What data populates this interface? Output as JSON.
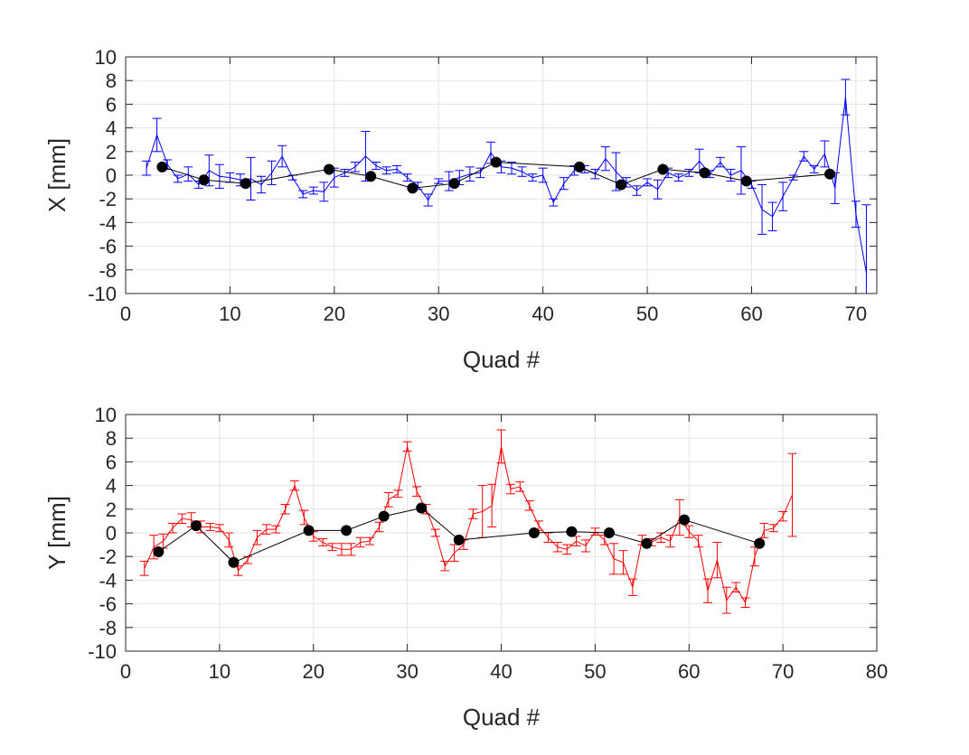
{
  "chart_data": [
    {
      "type": "line",
      "xlabel": "Quad #",
      "ylabel": "X [mm]",
      "xlim": [
        0,
        72
      ],
      "ylim": [
        -10,
        10
      ],
      "xticks": [
        0,
        10,
        20,
        30,
        40,
        50,
        60,
        70
      ],
      "yticks": [
        -10,
        -8,
        -6,
        -4,
        -2,
        0,
        2,
        4,
        6,
        8,
        10
      ],
      "grid": true,
      "series": [
        {
          "style": "errorbar",
          "color": "#0000ff",
          "points": [
            {
              "x": 2,
              "y": 0.6,
              "err": 0.6
            },
            {
              "x": 3,
              "y": 3.4,
              "err": 1.4
            },
            {
              "x": 4,
              "y": 0.9,
              "err": 0.4
            },
            {
              "x": 5,
              "y": -0.3,
              "err": 0.3
            },
            {
              "x": 6,
              "y": 0.1,
              "err": 0.6
            },
            {
              "x": 7,
              "y": -0.8,
              "err": 0.3
            },
            {
              "x": 8,
              "y": 0.4,
              "err": 1.3
            },
            {
              "x": 9,
              "y": -0.1,
              "err": 1.0
            },
            {
              "x": 10,
              "y": -0.2,
              "err": 0.4
            },
            {
              "x": 11,
              "y": -0.4,
              "err": 0.5
            },
            {
              "x": 12,
              "y": -0.3,
              "err": 1.8
            },
            {
              "x": 13,
              "y": -0.8,
              "err": 0.7
            },
            {
              "x": 14,
              "y": 0.2,
              "err": 1.0
            },
            {
              "x": 15,
              "y": 1.6,
              "err": 0.9
            },
            {
              "x": 16,
              "y": -0.2,
              "err": 0.2
            },
            {
              "x": 17,
              "y": -1.6,
              "err": 0.3
            },
            {
              "x": 18,
              "y": -1.3,
              "err": 0.3
            },
            {
              "x": 19,
              "y": -1.4,
              "err": 0.8
            },
            {
              "x": 20,
              "y": -0.2,
              "err": 0.8
            },
            {
              "x": 21,
              "y": 0.2,
              "err": 0.3
            },
            {
              "x": 22,
              "y": 0.7,
              "err": 0.4
            },
            {
              "x": 23,
              "y": 1.6,
              "err": 2.1
            },
            {
              "x": 24,
              "y": 0.8,
              "err": 0.3
            },
            {
              "x": 25,
              "y": 0.4,
              "err": 0.3
            },
            {
              "x": 26,
              "y": 0.5,
              "err": 0.3
            },
            {
              "x": 27,
              "y": -0.2,
              "err": 0.3
            },
            {
              "x": 28,
              "y": -0.9,
              "err": 0.3
            },
            {
              "x": 29,
              "y": -2.1,
              "err": 0.5
            },
            {
              "x": 30,
              "y": -0.5,
              "err": 0.2
            },
            {
              "x": 31,
              "y": -0.5,
              "err": 0.8
            },
            {
              "x": 32,
              "y": -0.2,
              "err": 0.6
            },
            {
              "x": 33,
              "y": 0.1,
              "err": 0.6
            },
            {
              "x": 34,
              "y": 0.2,
              "err": 0.4
            },
            {
              "x": 35,
              "y": 1.9,
              "err": 0.9
            },
            {
              "x": 36,
              "y": 0.7,
              "err": 0.5
            },
            {
              "x": 37,
              "y": 0.6,
              "err": 0.5
            },
            {
              "x": 38,
              "y": 0.3,
              "err": 0.4
            },
            {
              "x": 39,
              "y": -0.2,
              "err": 0.3
            },
            {
              "x": 40,
              "y": 0.0,
              "err": 0.6
            },
            {
              "x": 41,
              "y": -2.3,
              "err": 0.3
            },
            {
              "x": 42,
              "y": -0.7,
              "err": 0.5
            },
            {
              "x": 43,
              "y": 0.4,
              "err": 0.4
            },
            {
              "x": 44,
              "y": 0.5,
              "err": 0.3
            },
            {
              "x": 45,
              "y": 0.1,
              "err": 0.4
            },
            {
              "x": 46,
              "y": 1.4,
              "err": 1.0
            },
            {
              "x": 47,
              "y": 0.3,
              "err": 1.6
            },
            {
              "x": 48,
              "y": -0.6,
              "err": 0.4
            },
            {
              "x": 49,
              "y": -1.3,
              "err": 0.4
            },
            {
              "x": 50,
              "y": -0.6,
              "err": 0.3
            },
            {
              "x": 51,
              "y": -1.2,
              "err": 0.8
            },
            {
              "x": 52,
              "y": 0.2,
              "err": 0.4
            },
            {
              "x": 53,
              "y": -0.2,
              "err": 0.3
            },
            {
              "x": 54,
              "y": 0.2,
              "err": 0.3
            },
            {
              "x": 55,
              "y": 1.2,
              "err": 1.0
            },
            {
              "x": 56,
              "y": 0.1,
              "err": 0.3
            },
            {
              "x": 57,
              "y": 1.1,
              "err": 0.4
            },
            {
              "x": 58,
              "y": 0.0,
              "err": 0.5
            },
            {
              "x": 59,
              "y": 0.4,
              "err": 2.0
            },
            {
              "x": 60,
              "y": -0.8,
              "err": 0.3
            },
            {
              "x": 61,
              "y": -2.9,
              "err": 2.1
            },
            {
              "x": 62,
              "y": -3.5,
              "err": 1.2
            },
            {
              "x": 63,
              "y": -1.8,
              "err": 1.2
            },
            {
              "x": 64,
              "y": -0.2,
              "err": 0.2
            },
            {
              "x": 65,
              "y": 1.6,
              "err": 0.4
            },
            {
              "x": 66,
              "y": 0.5,
              "err": 0.3
            },
            {
              "x": 67,
              "y": 1.8,
              "err": 1.1
            },
            {
              "x": 68,
              "y": -1.1,
              "err": 1.3
            },
            {
              "x": 69,
              "y": 6.6,
              "err": 1.5
            },
            {
              "x": 70,
              "y": -3.3,
              "err": 1.1
            },
            {
              "x": 71,
              "y": -8.3,
              "err": 5.8
            }
          ]
        },
        {
          "style": "markers",
          "color": "#000000",
          "points": [
            {
              "x": 3.5,
              "y": 0.7
            },
            {
              "x": 7.5,
              "y": -0.4
            },
            {
              "x": 11.5,
              "y": -0.7
            },
            {
              "x": 19.5,
              "y": 0.5
            },
            {
              "x": 23.5,
              "y": -0.1
            },
            {
              "x": 27.5,
              "y": -1.1
            },
            {
              "x": 31.5,
              "y": -0.7
            },
            {
              "x": 35.5,
              "y": 1.1
            },
            {
              "x": 43.5,
              "y": 0.7
            },
            {
              "x": 47.5,
              "y": -0.8
            },
            {
              "x": 51.5,
              "y": 0.5
            },
            {
              "x": 55.5,
              "y": 0.2
            },
            {
              "x": 59.5,
              "y": -0.5
            },
            {
              "x": 67.5,
              "y": 0.1
            }
          ]
        }
      ]
    },
    {
      "type": "line",
      "xlabel": "Quad #",
      "ylabel": "Y [mm]",
      "xlim": [
        0,
        80
      ],
      "ylim": [
        -10,
        10
      ],
      "xticks": [
        0,
        10,
        20,
        30,
        40,
        50,
        60,
        70,
        80
      ],
      "yticks": [
        -10,
        -8,
        -6,
        -4,
        -2,
        0,
        2,
        4,
        6,
        8,
        10
      ],
      "grid": true,
      "series": [
        {
          "style": "errorbar",
          "color": "#ff0000",
          "points": [
            {
              "x": 2,
              "y": -3.0,
              "err": 0.6
            },
            {
              "x": 3,
              "y": -1.2,
              "err": 1.0
            },
            {
              "x": 4,
              "y": -0.7,
              "err": 0.6
            },
            {
              "x": 5,
              "y": 0.4,
              "err": 0.4
            },
            {
              "x": 6,
              "y": 1.2,
              "err": 0.4
            },
            {
              "x": 7,
              "y": 1.1,
              "err": 0.6
            },
            {
              "x": 8,
              "y": 0.5,
              "err": 0.5
            },
            {
              "x": 9,
              "y": 0.5,
              "err": 0.3
            },
            {
              "x": 10,
              "y": 0.4,
              "err": 0.3
            },
            {
              "x": 11,
              "y": -0.6,
              "err": 0.6
            },
            {
              "x": 12,
              "y": -3.2,
              "err": 0.4
            },
            {
              "x": 13,
              "y": -2.3,
              "err": 0.3
            },
            {
              "x": 14,
              "y": -0.4,
              "err": 0.6
            },
            {
              "x": 15,
              "y": 0.3,
              "err": 0.4
            },
            {
              "x": 16,
              "y": 0.3,
              "err": 0.3
            },
            {
              "x": 17,
              "y": 2.0,
              "err": 0.4
            },
            {
              "x": 18,
              "y": 4.0,
              "err": 0.4
            },
            {
              "x": 19,
              "y": 1.3,
              "err": 0.6
            },
            {
              "x": 20,
              "y": -0.3,
              "err": 0.4
            },
            {
              "x": 21,
              "y": -0.8,
              "err": 0.3
            },
            {
              "x": 22,
              "y": -1.2,
              "err": 0.3
            },
            {
              "x": 23,
              "y": -1.4,
              "err": 0.5
            },
            {
              "x": 24,
              "y": -1.4,
              "err": 0.5
            },
            {
              "x": 25,
              "y": -0.8,
              "err": 0.4
            },
            {
              "x": 26,
              "y": -0.7,
              "err": 0.3
            },
            {
              "x": 27,
              "y": 0.5,
              "err": 0.4
            },
            {
              "x": 28,
              "y": 2.8,
              "err": 0.6
            },
            {
              "x": 29,
              "y": 3.3,
              "err": 0.3
            },
            {
              "x": 30,
              "y": 7.3,
              "err": 0.4
            },
            {
              "x": 31,
              "y": 3.5,
              "err": 0.4
            },
            {
              "x": 32,
              "y": 2.0,
              "err": 0.4
            },
            {
              "x": 33,
              "y": 0.0,
              "err": 0.3
            },
            {
              "x": 34,
              "y": -2.8,
              "err": 0.4
            },
            {
              "x": 35,
              "y": -1.7,
              "err": 0.7
            },
            {
              "x": 36,
              "y": -1.0,
              "err": 0.4
            },
            {
              "x": 37,
              "y": 1.6,
              "err": 0.4
            },
            {
              "x": 38,
              "y": 1.8,
              "err": 2.2
            },
            {
              "x": 39,
              "y": 2.3,
              "err": 1.8
            },
            {
              "x": 40,
              "y": 7.3,
              "err": 1.4
            },
            {
              "x": 41,
              "y": 3.7,
              "err": 0.4
            },
            {
              "x": 42,
              "y": 3.9,
              "err": 0.4
            },
            {
              "x": 43,
              "y": 2.3,
              "err": 0.4
            },
            {
              "x": 44,
              "y": 0.6,
              "err": 0.4
            },
            {
              "x": 45,
              "y": -0.4,
              "err": 0.4
            },
            {
              "x": 46,
              "y": -1.2,
              "err": 0.4
            },
            {
              "x": 47,
              "y": -1.4,
              "err": 0.4
            },
            {
              "x": 48,
              "y": -0.7,
              "err": 0.4
            },
            {
              "x": 49,
              "y": -1.1,
              "err": 0.5
            },
            {
              "x": 50,
              "y": 0.1,
              "err": 0.3
            },
            {
              "x": 51,
              "y": -0.6,
              "err": 0.4
            },
            {
              "x": 52,
              "y": -2.2,
              "err": 1.3
            },
            {
              "x": 53,
              "y": -2.5,
              "err": 1.0
            },
            {
              "x": 54,
              "y": -4.6,
              "err": 0.7
            },
            {
              "x": 55,
              "y": -0.6,
              "err": 0.4
            },
            {
              "x": 56,
              "y": -0.8,
              "err": 0.3
            },
            {
              "x": 57,
              "y": -0.4,
              "err": 0.4
            },
            {
              "x": 58,
              "y": -0.7,
              "err": 0.5
            },
            {
              "x": 59,
              "y": 1.3,
              "err": 1.5
            },
            {
              "x": 60,
              "y": 0.1,
              "err": 0.5
            },
            {
              "x": 61,
              "y": -0.7,
              "err": 0.5
            },
            {
              "x": 62,
              "y": -4.9,
              "err": 1.0
            },
            {
              "x": 63,
              "y": -2.3,
              "err": 1.5
            },
            {
              "x": 64,
              "y": -5.7,
              "err": 1.1
            },
            {
              "x": 65,
              "y": -4.6,
              "err": 0.4
            },
            {
              "x": 66,
              "y": -5.9,
              "err": 0.4
            },
            {
              "x": 67,
              "y": -2.0,
              "err": 0.8
            },
            {
              "x": 68,
              "y": 0.2,
              "err": 0.6
            },
            {
              "x": 69,
              "y": 0.4,
              "err": 0.3
            },
            {
              "x": 70,
              "y": 1.4,
              "err": 0.4
            },
            {
              "x": 71,
              "y": 3.2,
              "err": 3.5
            }
          ]
        },
        {
          "style": "markers",
          "color": "#000000",
          "points": [
            {
              "x": 3.5,
              "y": -1.6
            },
            {
              "x": 7.5,
              "y": 0.6
            },
            {
              "x": 11.5,
              "y": -2.5
            },
            {
              "x": 19.5,
              "y": 0.2
            },
            {
              "x": 23.5,
              "y": 0.2
            },
            {
              "x": 27.5,
              "y": 1.4
            },
            {
              "x": 31.5,
              "y": 2.1
            },
            {
              "x": 35.5,
              "y": -0.6
            },
            {
              "x": 43.5,
              "y": 0.0
            },
            {
              "x": 47.5,
              "y": 0.1
            },
            {
              "x": 51.5,
              "y": 0.0
            },
            {
              "x": 55.5,
              "y": -0.9
            },
            {
              "x": 59.5,
              "y": 1.1
            },
            {
              "x": 67.5,
              "y": -0.9
            }
          ]
        }
      ]
    }
  ]
}
